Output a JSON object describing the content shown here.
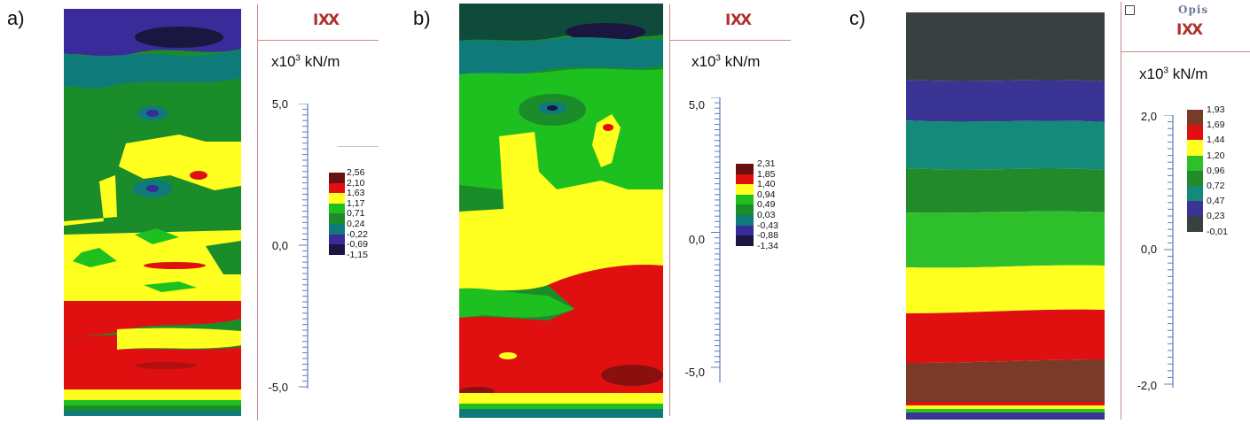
{
  "unit_text": "x10",
  "unit_exp": "3",
  "unit_suffix": " kN/m",
  "pattern_icon": "ⅨⅩ",
  "panels": [
    {
      "label": "a)",
      "scale_ticks": [
        "5,0",
        "0,0",
        "-5,0"
      ],
      "legend_values": [
        "2,56",
        "2,10",
        "1,63",
        "1,17",
        "0,71",
        "0,24",
        "-0,22",
        "-0,69",
        "-1,15"
      ],
      "legend_colors": [
        "#6b1010",
        "#e01010",
        "#ffff20",
        "#1ec020",
        "#1b8c2a",
        "#0f7a7a",
        "#3a2b9a",
        "#1a1640"
      ]
    },
    {
      "label": "b)",
      "scale_ticks": [
        "5,0",
        "0,0",
        "-5,0"
      ],
      "legend_values": [
        "2,31",
        "1,85",
        "1,40",
        "0,94",
        "0,49",
        "0,03",
        "-0,43",
        "-0,88",
        "-1,34"
      ],
      "legend_colors": [
        "#6b1010",
        "#e01010",
        "#ffff20",
        "#1ec020",
        "#1b8c2a",
        "#0f7a7a",
        "#3a2b9a",
        "#1a1640"
      ]
    },
    {
      "label": "c)",
      "title": "Opis",
      "scale_ticks": [
        "2,0",
        "0,0",
        "-2,0"
      ],
      "legend_values": [
        "1,93",
        "1,69",
        "1,44",
        "1,20",
        "0,96",
        "0,72",
        "0,47",
        "0,23",
        "-0,01"
      ],
      "legend_colors": [
        "#7a3a2a",
        "#e01010",
        "#ffff20",
        "#2ec02a",
        "#228a2a",
        "#138a7a",
        "#3a3594",
        "#3a4040"
      ]
    }
  ]
}
